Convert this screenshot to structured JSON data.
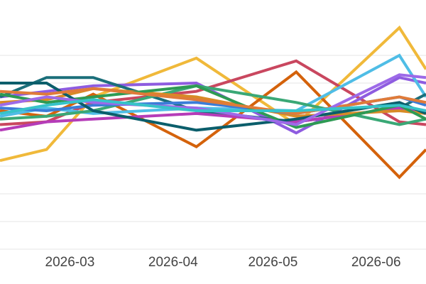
{
  "chart_data": {
    "type": "line",
    "x": [
      "2026-02-08",
      "2026-02-22",
      "2026-03-08",
      "2026-04-08",
      "2026-05-08",
      "2026-06-08",
      "2026-06-16"
    ],
    "x_ticks": [
      "2026-03",
      "2026-04",
      "2026-05",
      "2026-06"
    ],
    "ylim": [
      0,
      10
    ],
    "y_gridlines": [
      1,
      2,
      3,
      4,
      5,
      6,
      7,
      8
    ],
    "y_tick_labels_visible": false,
    "legend": "none",
    "grid": "horizontal",
    "series": [
      {
        "color": "#f0b93a",
        "values": [
          4.2,
          4.6,
          6.5,
          7.9,
          5.5,
          9.0,
          7.5
        ]
      },
      {
        "color": "#c9475f",
        "values": [
          5.5,
          5.6,
          6.3,
          6.7,
          7.8,
          5.6,
          5.5
        ]
      },
      {
        "color": "#d4620b",
        "values": [
          6.0,
          5.8,
          6.6,
          4.7,
          7.4,
          3.6,
          4.6
        ]
      },
      {
        "color": "#8e5ce0",
        "values": [
          6.5,
          6.7,
          6.9,
          7.0,
          5.2,
          7.2,
          7.0
        ]
      },
      {
        "color": "#4fbde6",
        "values": [
          5.8,
          6.1,
          5.9,
          6.1,
          6.0,
          8.0,
          6.5
        ]
      },
      {
        "color": "#1b6f7a",
        "values": [
          6.5,
          7.2,
          7.2,
          6.0,
          5.6,
          6.1,
          6.6
        ]
      },
      {
        "color": "#3aa876",
        "values": [
          5.7,
          5.8,
          6.0,
          6.9,
          6.3,
          5.5,
          5.7
        ]
      },
      {
        "color": "#b53cb8",
        "values": [
          5.3,
          5.6,
          5.7,
          5.9,
          5.6,
          6.1,
          6.0
        ]
      },
      {
        "color": "#d88a26",
        "values": [
          6.3,
          6.4,
          6.8,
          6.5,
          5.8,
          6.0,
          5.9
        ]
      },
      {
        "color": "#3b7dd8",
        "values": [
          6.1,
          6.0,
          6.2,
          6.3,
          5.9,
          6.5,
          6.2
        ]
      },
      {
        "color": "#2e9a54",
        "values": [
          6.6,
          6.3,
          6.5,
          6.9,
          5.4,
          6.2,
          5.7
        ]
      },
      {
        "color": "#0b5e6b",
        "values": [
          7.0,
          7.0,
          6.0,
          5.3,
          5.7,
          6.3,
          5.9
        ]
      },
      {
        "color": "#e07b39",
        "values": [
          6.7,
          6.6,
          6.8,
          6.4,
          5.9,
          6.5,
          6.3
        ]
      },
      {
        "color": "#9d6ae8",
        "values": [
          6.2,
          6.5,
          6.3,
          6.1,
          5.5,
          7.3,
          7.2
        ]
      },
      {
        "color": "#37c3c9",
        "values": [
          5.9,
          6.2,
          6.4,
          6.0,
          6.0,
          6.2,
          6.0
        ]
      }
    ]
  }
}
